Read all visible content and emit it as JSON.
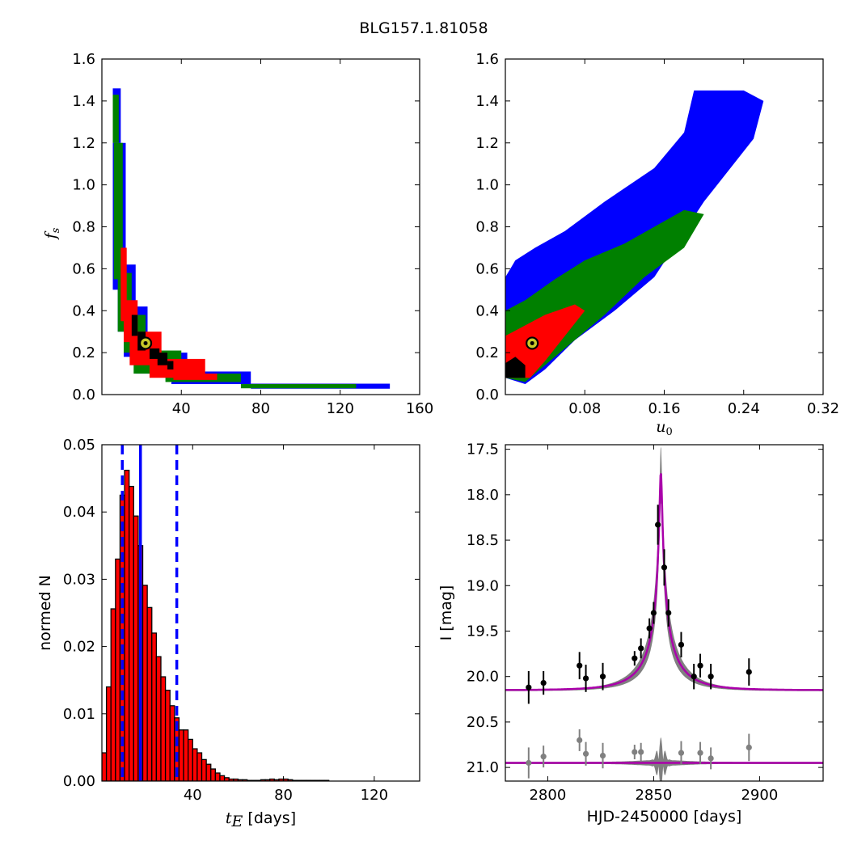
{
  "figure": {
    "title": "BLG157.1.81058"
  },
  "chart_data": [
    {
      "type": "heatmap",
      "panel": "top-left",
      "x_ticks": [
        "40",
        "80",
        "120",
        "160"
      ],
      "y_ticks": [
        "0.0",
        "0.2",
        "0.4",
        "0.6",
        "0.8",
        "1.0",
        "1.2",
        "1.4",
        "1.6"
      ],
      "xlim": [
        0,
        160
      ],
      "ylim": [
        0,
        1.6
      ],
      "ylabel": "f_s",
      "ylabel_main": "f",
      "ylabel_sub": "s",
      "best_fit": {
        "x": 22,
        "y": 0.245
      },
      "confidence_colors": {
        "outer": "#0000ff",
        "mid": "#008000",
        "inner": "#ff0000",
        "core": "#000000"
      },
      "blocks": [
        {
          "level": "outer",
          "x0": 5.5,
          "x1": 9.5,
          "y0": 1.2,
          "y1": 1.46
        },
        {
          "level": "outer",
          "x0": 5.5,
          "x1": 12,
          "y0": 0.5,
          "y1": 1.2
        },
        {
          "level": "outer",
          "x0": 8,
          "x1": 17,
          "y0": 0.3,
          "y1": 0.62
        },
        {
          "level": "outer",
          "x0": 11,
          "x1": 23,
          "y0": 0.18,
          "y1": 0.42
        },
        {
          "level": "outer",
          "x0": 17,
          "x1": 43,
          "y0": 0.1,
          "y1": 0.2
        },
        {
          "level": "outer",
          "x0": 35,
          "x1": 75,
          "y0": 0.05,
          "y1": 0.11
        },
        {
          "level": "outer",
          "x0": 75,
          "x1": 145,
          "y0": 0.028,
          "y1": 0.052
        },
        {
          "level": "mid",
          "x0": 5.5,
          "x1": 8.5,
          "y0": 1.2,
          "y1": 1.43
        },
        {
          "level": "mid",
          "x0": 6,
          "x1": 10.5,
          "y0": 0.55,
          "y1": 1.2
        },
        {
          "level": "mid",
          "x0": 8,
          "x1": 15,
          "y0": 0.3,
          "y1": 0.58
        },
        {
          "level": "mid",
          "x0": 11,
          "x1": 22,
          "y0": 0.2,
          "y1": 0.38
        },
        {
          "level": "mid",
          "x0": 16,
          "x1": 40,
          "y0": 0.1,
          "y1": 0.21
        },
        {
          "level": "mid",
          "x0": 32,
          "x1": 70,
          "y0": 0.06,
          "y1": 0.1
        },
        {
          "level": "mid",
          "x0": 70,
          "x1": 128,
          "y0": 0.03,
          "y1": 0.05
        },
        {
          "level": "inner",
          "x0": 9.5,
          "x1": 12.5,
          "y0": 0.35,
          "y1": 0.7
        },
        {
          "level": "inner",
          "x0": 11,
          "x1": 18,
          "y0": 0.25,
          "y1": 0.45
        },
        {
          "level": "inner",
          "x0": 14,
          "x1": 30,
          "y0": 0.14,
          "y1": 0.3
        },
        {
          "level": "inner",
          "x0": 24,
          "x1": 52,
          "y0": 0.08,
          "y1": 0.17
        },
        {
          "level": "inner",
          "x0": 36,
          "x1": 58,
          "y0": 0.07,
          "y1": 0.1
        },
        {
          "level": "core",
          "x0": 15,
          "x1": 18,
          "y0": 0.28,
          "y1": 0.38
        },
        {
          "level": "core",
          "x0": 18,
          "x1": 22,
          "y0": 0.21,
          "y1": 0.3
        },
        {
          "level": "core",
          "x0": 24,
          "x1": 29,
          "y0": 0.17,
          "y1": 0.22
        },
        {
          "level": "core",
          "x0": 28,
          "x1": 33,
          "y0": 0.14,
          "y1": 0.2
        },
        {
          "level": "core",
          "x0": 33,
          "x1": 36,
          "y0": 0.12,
          "y1": 0.16
        }
      ]
    },
    {
      "type": "heatmap",
      "panel": "top-right",
      "x_ticks": [
        "0.08",
        "0.16",
        "0.24",
        "0.32"
      ],
      "y_ticks": [
        "0.0",
        "0.2",
        "0.4",
        "0.6",
        "0.8",
        "1.0",
        "1.2",
        "1.4",
        "1.6"
      ],
      "xlim": [
        0,
        0.32
      ],
      "ylim": [
        0,
        1.6
      ],
      "xlabel": "u_0",
      "xlabel_main": "u",
      "xlabel_sub": "0",
      "best_fit": {
        "x": 0.027,
        "y": 0.245
      },
      "confidence_colors": {
        "outer": "#0000ff",
        "mid": "#008000",
        "inner": "#ff0000",
        "core": "#000000"
      },
      "polygons": [
        {
          "level": "outer",
          "points": [
            [
              0,
              0.08
            ],
            [
              0,
              0.56
            ],
            [
              0.01,
              0.64
            ],
            [
              0.03,
              0.7
            ],
            [
              0.06,
              0.78
            ],
            [
              0.1,
              0.92
            ],
            [
              0.15,
              1.08
            ],
            [
              0.18,
              1.25
            ],
            [
              0.19,
              1.45
            ],
            [
              0.24,
              1.45
            ],
            [
              0.26,
              1.4
            ],
            [
              0.25,
              1.22
            ],
            [
              0.2,
              0.92
            ],
            [
              0.15,
              0.56
            ],
            [
              0.11,
              0.4
            ],
            [
              0.07,
              0.26
            ],
            [
              0.04,
              0.12
            ],
            [
              0.02,
              0.05
            ]
          ]
        },
        {
          "level": "mid",
          "points": [
            [
              0,
              0.08
            ],
            [
              0,
              0.4
            ],
            [
              0.02,
              0.45
            ],
            [
              0.05,
              0.55
            ],
            [
              0.08,
              0.64
            ],
            [
              0.12,
              0.72
            ],
            [
              0.15,
              0.8
            ],
            [
              0.18,
              0.88
            ],
            [
              0.2,
              0.86
            ],
            [
              0.18,
              0.7
            ],
            [
              0.14,
              0.56
            ],
            [
              0.1,
              0.38
            ],
            [
              0.06,
              0.22
            ],
            [
              0.03,
              0.1
            ],
            [
              0.02,
              0.06
            ]
          ]
        },
        {
          "level": "inner",
          "points": [
            [
              0,
              0.08
            ],
            [
              0,
              0.28
            ],
            [
              0.02,
              0.33
            ],
            [
              0.04,
              0.38
            ],
            [
              0.07,
              0.43
            ],
            [
              0.08,
              0.4
            ],
            [
              0.06,
              0.28
            ],
            [
              0.04,
              0.16
            ],
            [
              0.025,
              0.08
            ]
          ]
        },
        {
          "level": "core",
          "points": [
            [
              0,
              0.08
            ],
            [
              0,
              0.15
            ],
            [
              0.01,
              0.18
            ],
            [
              0.02,
              0.14
            ],
            [
              0.02,
              0.08
            ]
          ]
        }
      ]
    },
    {
      "type": "bar",
      "panel": "bottom-left",
      "x_ticks": [
        "40",
        "80",
        "120"
      ],
      "y_ticks": [
        "0.00",
        "0.01",
        "0.02",
        "0.03",
        "0.04",
        "0.05"
      ],
      "xlim": [
        0,
        140
      ],
      "ylim": [
        0,
        0.05
      ],
      "xlabel": "t_E [days]",
      "xlabel_main": "t",
      "xlabel_sub": "E",
      "xlabel_unit": " [days]",
      "ylabel": "normed N",
      "bin_start": 0,
      "bin_width": 2,
      "bar_color": "#ff0000",
      "values": [
        0.0042,
        0.014,
        0.0256,
        0.033,
        0.0425,
        0.0462,
        0.0438,
        0.0394,
        0.035,
        0.0291,
        0.0258,
        0.022,
        0.0185,
        0.0155,
        0.0135,
        0.0112,
        0.0094,
        0.0076,
        0.0076,
        0.0062,
        0.0048,
        0.0042,
        0.0032,
        0.0025,
        0.0018,
        0.0012,
        0.0008,
        0.0005,
        0.0003,
        0.0003,
        0.0002,
        0.0002,
        0.0001,
        0.0001,
        0.0001,
        0.0002,
        0.0002,
        0.0003,
        0.0002,
        0.0003,
        0.0003,
        0.0002,
        0.0001,
        0.0001,
        0.0001,
        0.0001,
        0.0001,
        0.0001,
        0.0001,
        0.0001
      ],
      "vlines": [
        {
          "x": 9,
          "style": "dashed",
          "color": "#0000ff"
        },
        {
          "x": 17,
          "style": "solid",
          "color": "#0000ff"
        },
        {
          "x": 33,
          "style": "dashed",
          "color": "#0000ff"
        }
      ]
    },
    {
      "type": "scatter",
      "panel": "bottom-right",
      "x_ticks": [
        "2800",
        "2850",
        "2900"
      ],
      "y_ticks": [
        "17.5",
        "18.0",
        "18.5",
        "19.0",
        "19.5",
        "20.0",
        "20.5",
        "21.0"
      ],
      "xlim": [
        2780,
        2930
      ],
      "ylim": [
        21.15,
        17.45
      ],
      "xlabel": "HJD-2450000 [days]",
      "ylabel": "I [mag]",
      "model": {
        "t0": 2853.4,
        "baseline": 20.15,
        "peak": 17.75,
        "color": "#aa00aa"
      },
      "residual_baseline": 20.95,
      "data_points": [
        {
          "x": 2791,
          "y": 20.12,
          "err": 0.18
        },
        {
          "x": 2798,
          "y": 20.07,
          "err": 0.13
        },
        {
          "x": 2815,
          "y": 19.88,
          "err": 0.15
        },
        {
          "x": 2818,
          "y": 20.02,
          "err": 0.15
        },
        {
          "x": 2826,
          "y": 20.0,
          "err": 0.15
        },
        {
          "x": 2841,
          "y": 19.8,
          "err": 0.08
        },
        {
          "x": 2844,
          "y": 19.69,
          "err": 0.11
        },
        {
          "x": 2848,
          "y": 19.47,
          "err": 0.11
        },
        {
          "x": 2850,
          "y": 19.3,
          "err": 0.12
        },
        {
          "x": 2852,
          "y": 18.33,
          "err": 0.22
        },
        {
          "x": 2855,
          "y": 18.8,
          "err": 0.2
        },
        {
          "x": 2857,
          "y": 19.3,
          "err": 0.15
        },
        {
          "x": 2863,
          "y": 19.65,
          "err": 0.14
        },
        {
          "x": 2869,
          "y": 20.0,
          "err": 0.14
        },
        {
          "x": 2872,
          "y": 19.88,
          "err": 0.13
        },
        {
          "x": 2877,
          "y": 20.0,
          "err": 0.14
        },
        {
          "x": 2895,
          "y": 19.95,
          "err": 0.15
        }
      ],
      "residual_points": [
        {
          "x": 2791,
          "y": 20.95,
          "err": 0.17
        },
        {
          "x": 2798,
          "y": 20.88,
          "err": 0.12
        },
        {
          "x": 2815,
          "y": 20.7,
          "err": 0.12
        },
        {
          "x": 2818,
          "y": 20.85,
          "err": 0.13
        },
        {
          "x": 2826,
          "y": 20.87,
          "err": 0.14
        },
        {
          "x": 2841,
          "y": 20.83,
          "err": 0.08
        },
        {
          "x": 2844,
          "y": 20.83,
          "err": 0.1
        },
        {
          "x": 2863,
          "y": 20.84,
          "err": 0.13
        },
        {
          "x": 2872,
          "y": 20.84,
          "err": 0.12
        },
        {
          "x": 2877,
          "y": 20.9,
          "err": 0.12
        },
        {
          "x": 2895,
          "y": 20.78,
          "err": 0.15
        }
      ]
    }
  ]
}
